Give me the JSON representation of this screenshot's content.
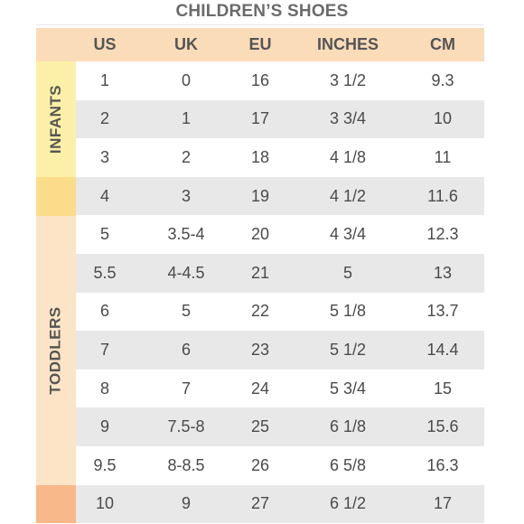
{
  "title": "CHILDREN’S SHOES",
  "columns": [
    "US",
    "UK",
    "EU",
    "INCHES",
    "CM"
  ],
  "groups": {
    "infants": {
      "label": "INFANTS",
      "color": "#fcf0a8"
    },
    "infants_transition": {
      "color": "#fbdc8a"
    },
    "toddlers": {
      "label": "TODDLERS",
      "color": "#fce4c7"
    },
    "toddlers_transition": {
      "color": "#f8b88a"
    }
  },
  "rows": [
    [
      "1",
      "0",
      "16",
      "3 1/2",
      "9.3"
    ],
    [
      "2",
      "1",
      "17",
      "3 3/4",
      "10"
    ],
    [
      "3",
      "2",
      "18",
      "4 1/8",
      "11"
    ],
    [
      "4",
      "3",
      "19",
      "4 1/2",
      "11.6"
    ],
    [
      "5",
      "3.5-4",
      "20",
      "4 3/4",
      "12.3"
    ],
    [
      "5.5",
      "4-4.5",
      "21",
      "5",
      "13"
    ],
    [
      "6",
      "5",
      "22",
      "5 1/8",
      "13.7"
    ],
    [
      "7",
      "6",
      "23",
      "5 1/2",
      "14.4"
    ],
    [
      "8",
      "7",
      "24",
      "5 3/4",
      "15"
    ],
    [
      "9",
      "7.5-8",
      "25",
      "6 1/8",
      "15.6"
    ],
    [
      "9.5",
      "8-8.5",
      "26",
      "6 5/8",
      "16.3"
    ],
    [
      "10",
      "9",
      "27",
      "6 1/2",
      "17"
    ]
  ]
}
